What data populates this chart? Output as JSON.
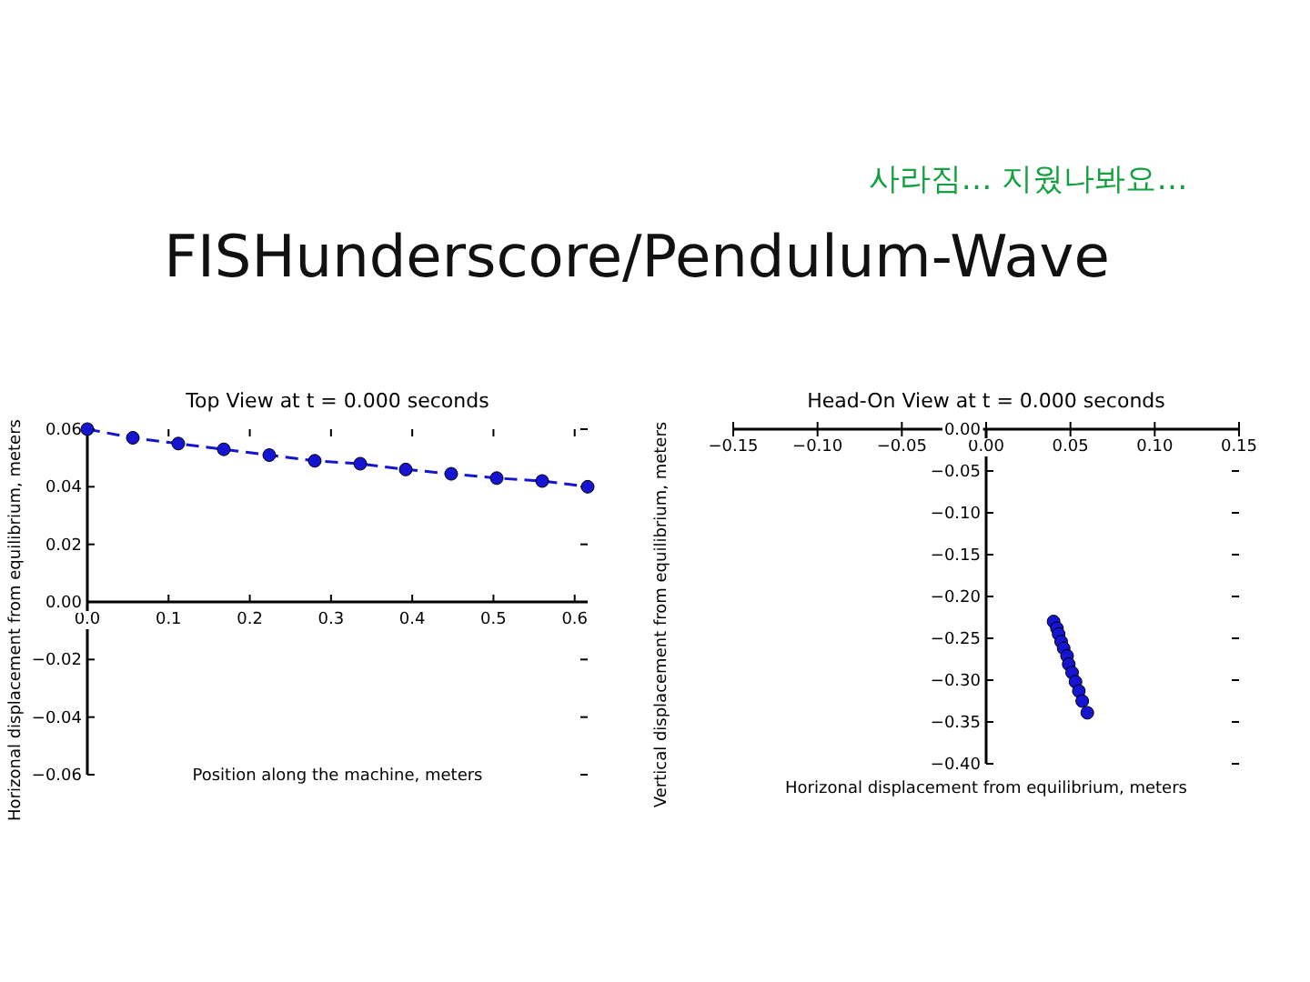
{
  "chart_data": [
    {
      "type": "line",
      "title": "Top View at t = 0.000 seconds",
      "xlabel": "Position along the machine, meters",
      "ylabel": "Horizonal displacement from equilibrium, meters",
      "annotations": [
        "FISHunderscore/Pendulum-Wave",
        "사라짐… 지웠나봐요…"
      ],
      "series": [
        {
          "color": "#1414d2",
          "x": [
            0,
            0.056,
            0.112,
            0.168,
            0.224,
            0.28,
            0.336,
            0.392,
            0.448,
            0.504,
            0.56,
            0.616
          ],
          "values": [
            0.06,
            0.057,
            0.055,
            0.053,
            0.051,
            0.049,
            0.048,
            0.046,
            0.0445,
            0.043,
            0.042,
            0.04
          ]
        }
      ],
      "marker": "circle",
      "line_style": "dashed",
      "grid": false,
      "xlim": [
        0,
        0.616
      ],
      "xticks": [
        {
          "value": 0,
          "label": "0.0"
        },
        0.1,
        0.2,
        0.3,
        0.4,
        0.5,
        0.6
      ],
      "ylim": [
        -0.06,
        0.06
      ],
      "yticks": [
        -0.06,
        -0.04,
        -0.02,
        {
          "value": 0,
          "label": "0.00"
        },
        0.02,
        0.04,
        0.06
      ]
    },
    {
      "type": "scatter",
      "title": "Head-On View at t = 0.000 seconds",
      "xlabel": "Horizonal displacement from equilibrium, meters",
      "ylabel": "Vertical displacement from equilibrium, meters",
      "series": [
        {
          "color": "#1414d2",
          "x": [
            0.04,
            0.042,
            0.043,
            0.0445,
            0.046,
            0.048,
            0.049,
            0.051,
            0.053,
            0.055,
            0.057,
            0.06
          ],
          "values": [
            -0.23,
            -0.238,
            -0.245,
            -0.254,
            -0.262,
            -0.271,
            -0.281,
            -0.291,
            -0.302,
            -0.313,
            -0.325,
            -0.339
          ]
        }
      ],
      "marker": "circle",
      "grid": false,
      "xlim": [
        -0.15,
        0.15
      ],
      "xticks": [
        -0.15,
        {
          "value": -0.1,
          "label": "−0.10"
        },
        -0.05,
        {
          "value": 0,
          "label": "0.00"
        },
        0.05,
        {
          "value": 0.1,
          "label": "0.10"
        },
        0.15
      ],
      "ylim": [
        -0.4,
        0
      ],
      "yticks": [
        {
          "value": -0.4,
          "label": "−0.40"
        },
        -0.35,
        {
          "value": -0.3,
          "label": "−0.30"
        },
        -0.25,
        {
          "value": -0.2,
          "label": "−0.20"
        },
        -0.15,
        {
          "value": -0.1,
          "label": "−0.10"
        },
        -0.05,
        {
          "value": 0,
          "label": "0.00"
        }
      ]
    }
  ]
}
